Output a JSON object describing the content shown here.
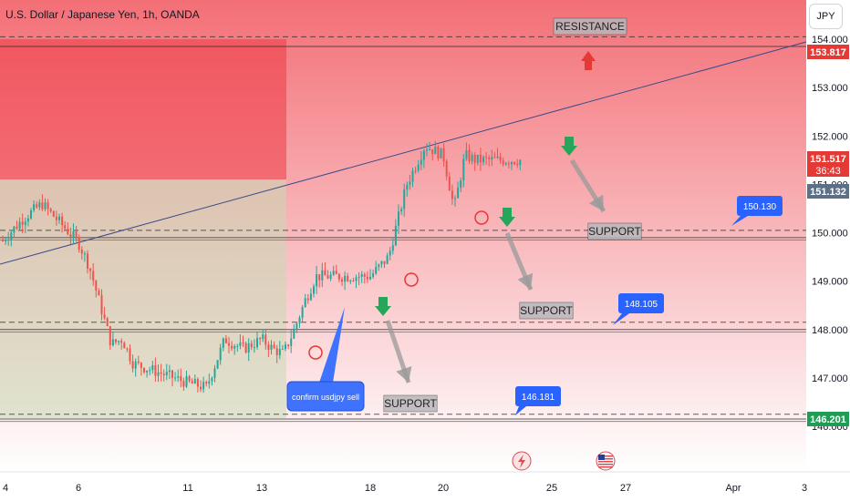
{
  "header": {
    "title": "U.S. Dollar / Japanese Yen, 1h, OANDA",
    "currency_button": "JPY"
  },
  "colors": {
    "up": "#26a69a",
    "down": "#ef5350",
    "trendline": "#3b4a8c",
    "callout": "#2962ff",
    "price_tag": "#e53935",
    "current_tag": "#5d6f86",
    "green_tag": "#1f9d55",
    "green_arrow": "#26a65b",
    "red_arrow": "#e53935"
  },
  "chart_data": {
    "type": "candlestick",
    "symbol": "U.S. Dollar / Japanese Yen",
    "timeframe": "1h",
    "source": "OANDA",
    "y_ticks": [
      "154.000",
      "153.000",
      "152.000",
      "151.000",
      "150.000",
      "149.000",
      "148.000",
      "147.000",
      "146.000"
    ],
    "ylim": [
      145.6,
      154.15
    ],
    "x_ticks": [
      "4",
      "6",
      "11",
      "13",
      "18",
      "20",
      "25",
      "27",
      "Apr",
      "3"
    ],
    "price_path": [
      [
        "4",
        149.9
      ],
      [
        "4.5",
        150.3
      ],
      [
        "5",
        150.6
      ],
      [
        "5.5",
        150.2
      ],
      [
        "6",
        149.8
      ],
      [
        "6.5",
        149.3
      ],
      [
        "7",
        148.5
      ],
      [
        "7.5",
        147.7
      ],
      [
        "8",
        147.8
      ],
      [
        "8.5",
        147.3
      ],
      [
        "11",
        146.9
      ],
      [
        "11.5",
        146.8
      ],
      [
        "12",
        147.8
      ],
      [
        "12.5",
        147.6
      ],
      [
        "13",
        147.8
      ],
      [
        "13.5",
        147.6
      ],
      [
        "14",
        147.5
      ],
      [
        "14.5",
        148.0
      ],
      [
        "15",
        148.6
      ],
      [
        "15.5",
        149.1
      ],
      [
        "18",
        149.1
      ],
      [
        "18.5",
        149.5
      ],
      [
        "19",
        151.0
      ],
      [
        "19.5",
        151.8
      ],
      [
        "20",
        151.6
      ],
      [
        "20.5",
        150.5
      ],
      [
        "21",
        151.6
      ],
      [
        "21.5",
        151.5
      ]
    ],
    "levels": [
      {
        "label": "RESISTANCE",
        "lines": [
          154.05,
          153.85
        ]
      },
      {
        "label": "SUPPORT",
        "lines": [
          150.05,
          149.9
        ]
      },
      {
        "label": "SUPPORT",
        "lines": [
          148.15,
          148.0
        ]
      },
      {
        "label": "SUPPORT",
        "lines": [
          146.25,
          146.15
        ]
      }
    ],
    "price_tags": [
      {
        "value": "153.817",
        "style": "red"
      },
      {
        "value": "151.517",
        "sub": "36:43",
        "style": "red"
      },
      {
        "value": "151.132",
        "style": "grey"
      },
      {
        "value": "146.201",
        "style": "green"
      }
    ],
    "callouts": [
      "150.130",
      "148.105",
      "146.181"
    ],
    "annotation": "confirm usdjpy sell",
    "grid": false
  }
}
